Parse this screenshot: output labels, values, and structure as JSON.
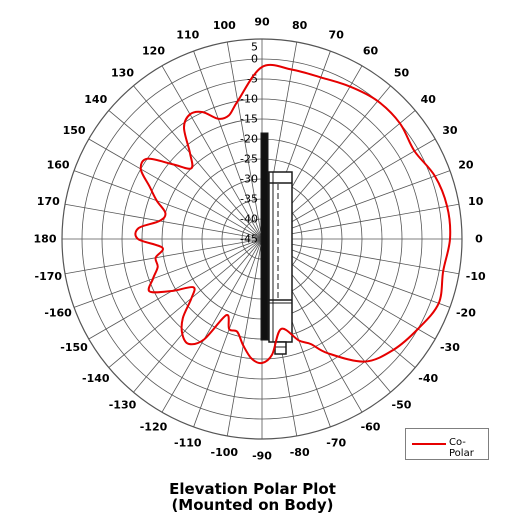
{
  "chart_data": {
    "type": "polar",
    "title": "Elevation Polar Plot",
    "subtitle": "(Mounted on Body)",
    "angle_labels": [
      "90",
      "80",
      "70",
      "60",
      "50",
      "40",
      "30",
      "20",
      "10",
      "0",
      "-10",
      "-20",
      "-30",
      "-40",
      "-50",
      "-60",
      "-70",
      "-80",
      "-90",
      "-100",
      "-110",
      "-120",
      "-130",
      "-140",
      "-150",
      "-160",
      "-170",
      "180",
      "170",
      "160",
      "150",
      "140",
      "130",
      "120",
      "110",
      "100"
    ],
    "angle_values_deg": [
      90,
      80,
      70,
      60,
      50,
      40,
      30,
      20,
      10,
      0,
      -10,
      -20,
      -30,
      -40,
      -50,
      -60,
      -70,
      -80,
      -90,
      -100,
      -110,
      -120,
      -130,
      -140,
      -150,
      -160,
      -170,
      180,
      170,
      160,
      150,
      140,
      130,
      120,
      110,
      100
    ],
    "radial_labels": [
      "5",
      "0",
      "-5",
      "-10",
      "-15",
      "-20",
      "-25",
      "-30",
      "-35",
      "-40",
      "-45"
    ],
    "radial_values_db": [
      5,
      0,
      -5,
      -10,
      -15,
      -20,
      -25,
      -30,
      -35,
      -40,
      -45
    ],
    "rlim": [
      -45,
      5
    ],
    "legend": {
      "entries": [
        "Co-Polar"
      ],
      "position": "bottom-right"
    },
    "series": [
      {
        "name": "Co-Polar",
        "color": "#e60000",
        "angles": [
          100,
          90,
          80,
          70,
          60,
          50,
          40,
          30,
          20,
          10,
          0,
          -10,
          -20,
          -30,
          -40,
          -50,
          -60,
          -65,
          -70,
          -78,
          -85,
          -90,
          -95,
          -100,
          -105,
          -110,
          -115,
          -120,
          -125,
          -130,
          -135,
          -140,
          -145,
          -150,
          -155,
          -160,
          -165,
          -170,
          -175,
          180,
          175,
          170,
          165,
          160,
          155,
          150,
          145,
          140,
          135,
          130,
          125,
          120,
          115,
          110,
          105
        ],
        "values": [
          -10,
          -2,
          -2,
          -2,
          -1,
          0,
          0,
          -1,
          1,
          2,
          2,
          1,
          2,
          0,
          -2,
          -5,
          -12,
          -16,
          -18,
          -22,
          -16,
          -14,
          -15,
          -18,
          -21,
          -21,
          -24,
          -16,
          -13,
          -14,
          -17,
          -22,
          -24,
          -19,
          -14,
          -16,
          -18,
          -18,
          -20,
          -14,
          -14,
          -19,
          -20,
          -17,
          -14,
          -10,
          -10,
          -16,
          -20,
          -17,
          -11,
          -9,
          -10,
          -13,
          -13
        ]
      }
    ]
  },
  "legend_label": "Co-Polar",
  "caption_line1": "Elevation Polar Plot",
  "caption_line2": "(Mounted on Body)",
  "colors": {
    "series": "#e60000",
    "grid": "#555555",
    "device": "#1a1a1a"
  }
}
